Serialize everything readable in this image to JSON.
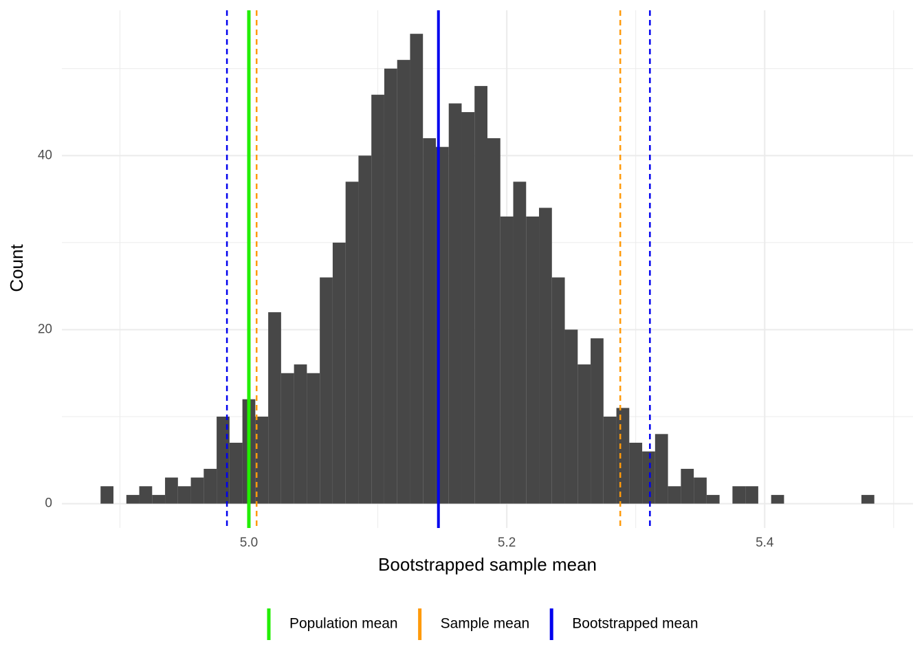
{
  "chart_data": {
    "type": "histogram",
    "xlabel": "Bootstrapped sample mean",
    "ylabel": "Count",
    "bins": [
      4.885,
      4.895,
      4.905,
      4.915,
      4.925,
      4.935,
      4.945,
      4.955,
      4.965,
      4.975,
      4.985,
      4.995,
      5.005,
      5.015,
      5.025,
      5.035,
      5.045,
      5.055,
      5.065,
      5.075,
      5.085,
      5.095,
      5.105,
      5.115,
      5.125,
      5.135,
      5.145,
      5.155,
      5.165,
      5.175,
      5.185,
      5.195,
      5.205,
      5.215,
      5.225,
      5.235,
      5.245,
      5.255,
      5.265,
      5.275,
      5.285,
      5.295,
      5.305,
      5.315,
      5.325,
      5.335,
      5.345,
      5.355,
      5.365,
      5.375,
      5.385,
      5.395,
      5.405,
      5.415,
      5.425,
      5.435,
      5.445,
      5.455,
      5.465,
      5.475,
      5.485
    ],
    "values": [
      2,
      0,
      1,
      2,
      1,
      3,
      2,
      3,
      4,
      10,
      7,
      12,
      10,
      22,
      15,
      16,
      15,
      26,
      30,
      37,
      40,
      47,
      50,
      51,
      54,
      42,
      41,
      46,
      45,
      48,
      42,
      33,
      37,
      33,
      34,
      26,
      20,
      16,
      19,
      10,
      11,
      7,
      6,
      8,
      2,
      4,
      3,
      1,
      0,
      2,
      2,
      0,
      1,
      0,
      0,
      0,
      0,
      0,
      0,
      1
    ],
    "color": "#474747",
    "xlim": [
      4.855,
      5.515
    ],
    "ylim": [
      -2.8,
      56.7
    ],
    "xticks": [
      {
        "value": 5.0,
        "label": "5.0"
      },
      {
        "value": 5.2,
        "label": "5.2"
      },
      {
        "value": 5.4,
        "label": "5.4"
      }
    ],
    "yticks": [
      0,
      20,
      40
    ],
    "xminor": [
      4.9,
      5.1,
      5.3,
      5.5
    ],
    "yminor": [
      10,
      30,
      50
    ],
    "grid": true,
    "legend": "bottom",
    "series": [
      {
        "name": "Population mean",
        "color": "#22ee00",
        "lines": [
          {
            "x": 5.0,
            "linetype": "solid"
          }
        ]
      },
      {
        "name": "Sample mean",
        "color": "#ff9a0a",
        "lines": [
          {
            "x": 5.006,
            "linetype": "dashed"
          },
          {
            "x": 5.288,
            "linetype": "dashed"
          }
        ]
      },
      {
        "name": "Bootstrapped mean",
        "color": "#0000ee",
        "lines": [
          {
            "x": 5.147,
            "linetype": "solid"
          },
          {
            "x": 4.983,
            "linetype": "dashed"
          },
          {
            "x": 5.311,
            "linetype": "dashed"
          }
        ]
      }
    ]
  }
}
